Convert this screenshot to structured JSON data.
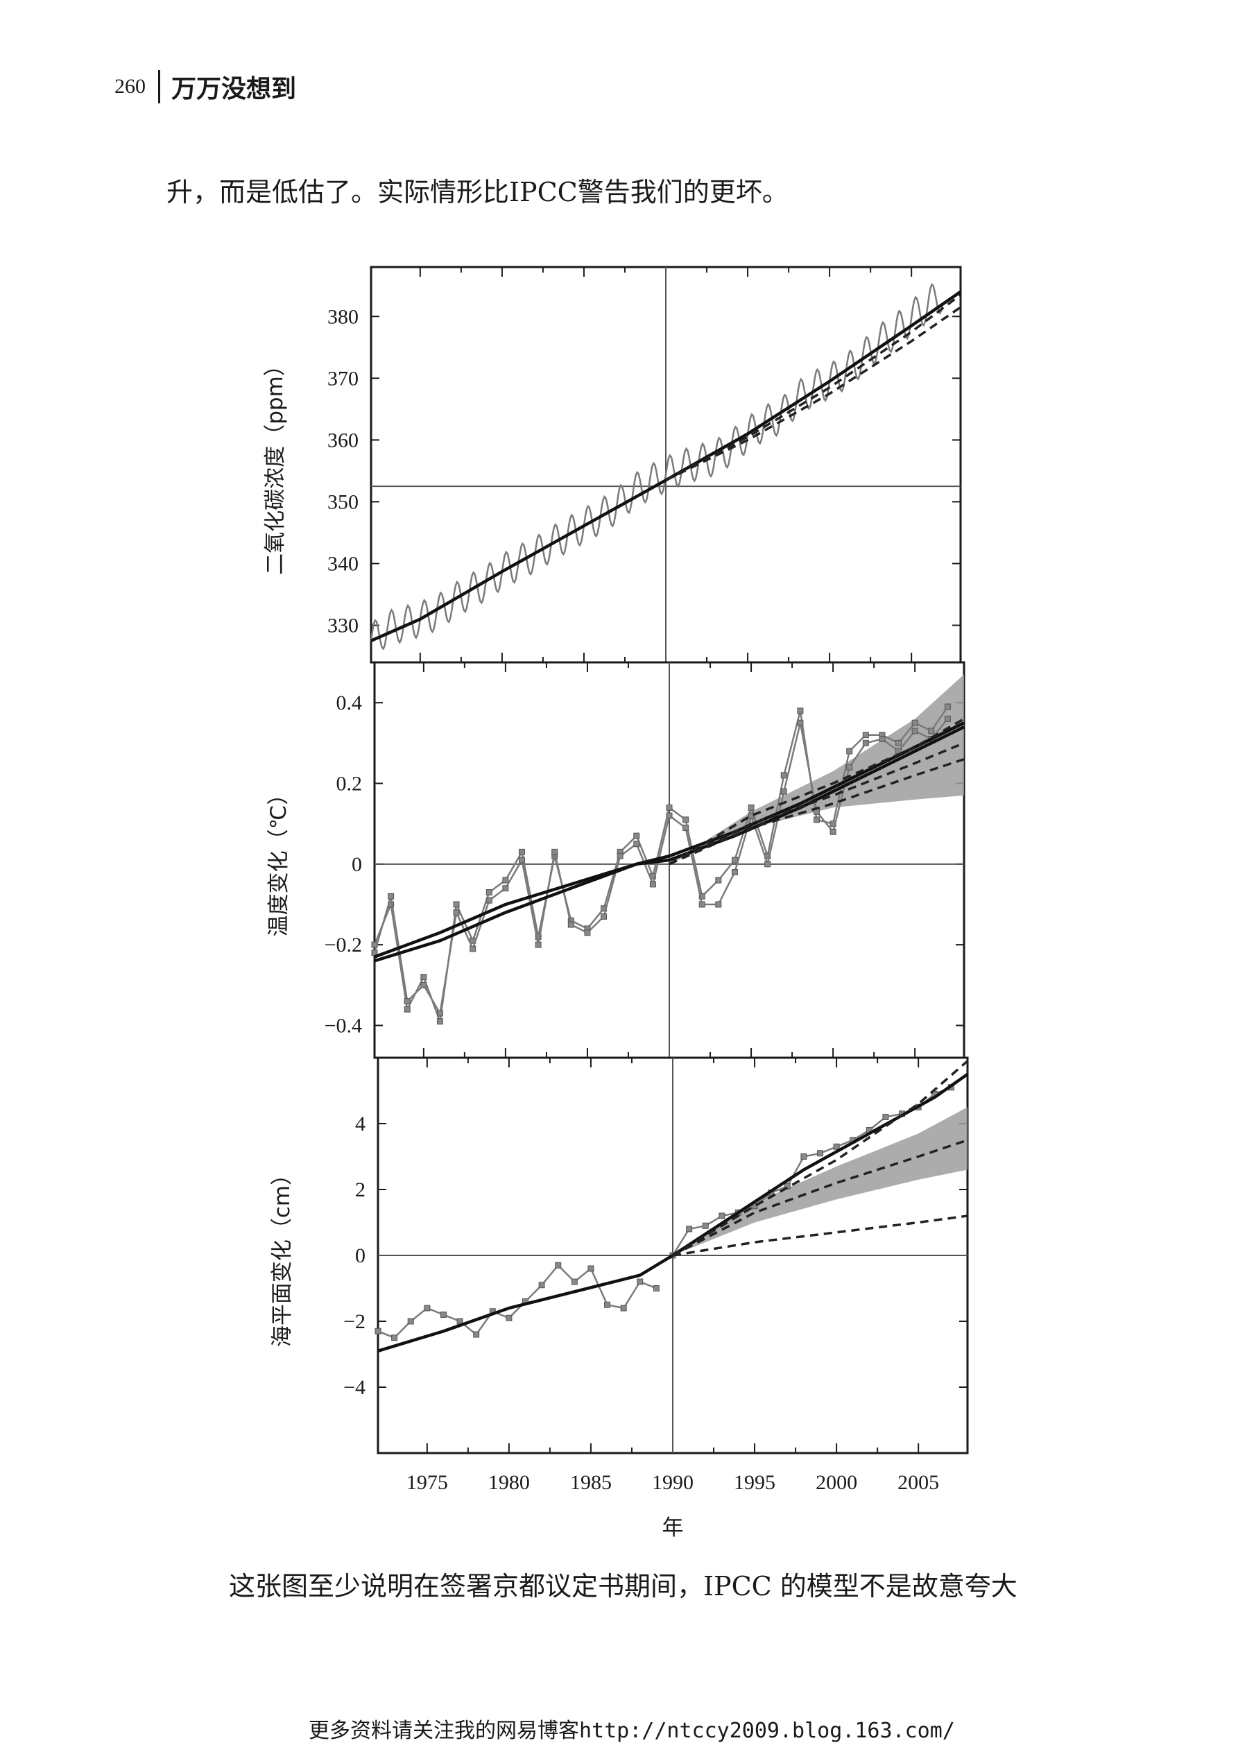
{
  "header": {
    "page_number": "260",
    "book_title": "万万没想到"
  },
  "paragraph_top": "升，而是低估了。实际情形比IPCC警告我们的更坏。",
  "paragraph_bottom": "这张图至少说明在签署京都议定书期间，IPCC 的模型不是故意夸大",
  "footer_note": "更多资料请关注我的网易博客http://ntccy2009.blog.163.com/",
  "chart_data": [
    {
      "type": "line",
      "ylabel": "二氧化碳浓度（ppm）",
      "xlim": [
        1972,
        2008
      ],
      "ylim": [
        324,
        388
      ],
      "yticks": [
        330,
        340,
        350,
        360,
        370,
        380
      ],
      "reference_year": 1990,
      "reference_value": 352.5,
      "series": [
        {
          "kind": "observed",
          "x": [
            1972,
            1973,
            1974,
            1975,
            1976,
            1977,
            1978,
            1979,
            1980,
            1981,
            1982,
            1983,
            1984,
            1985,
            1986,
            1987,
            1988,
            1989,
            1990,
            1991,
            1992,
            1993,
            1994,
            1995,
            1996,
            1997,
            1998,
            1999,
            2000,
            2001,
            2002,
            2003,
            2004,
            2005,
            2006,
            2007
          ],
          "values": [
            327.5,
            329.5,
            330.2,
            331,
            332,
            333.8,
            335.4,
            336.8,
            338.7,
            340.1,
            341.4,
            343.1,
            344.7,
            346.1,
            347.6,
            349.3,
            351.6,
            353.1,
            354.4,
            355.6,
            356.4,
            357.1,
            358.8,
            360.9,
            362.7,
            363.8,
            366.6,
            368.3,
            369.5,
            371.1,
            373.2,
            375.8,
            377.5,
            379.8,
            381.9,
            383.8
          ],
          "seasonal_amplitude": 2.8
        },
        {
          "kind": "trend",
          "x": [
            1972,
            1975,
            1980,
            1985,
            1990,
            1995,
            2000,
            2005,
            2008
          ],
          "values": [
            327.5,
            331,
            338.7,
            346.1,
            353.5,
            361,
            369.5,
            378.5,
            384
          ]
        },
        {
          "kind": "projection",
          "x": [
            1990,
            1995,
            2000,
            2005,
            2008
          ],
          "values": [
            353.5,
            360,
            367.5,
            376,
            381.5
          ]
        },
        {
          "kind": "projection",
          "x": [
            1990,
            1995,
            2000,
            2005,
            2008
          ],
          "values": [
            353.5,
            360.5,
            368.5,
            377.5,
            383.5
          ]
        }
      ]
    },
    {
      "type": "line",
      "ylabel": "温度变化（℃）",
      "xlim": [
        1972,
        2008
      ],
      "ylim": [
        -0.48,
        0.5
      ],
      "yticks": [
        -0.4,
        -0.2,
        0,
        0.2,
        0.4
      ],
      "reference_year": 1990,
      "reference_value": 0,
      "series": [
        {
          "kind": "observed",
          "x": [
            1972,
            1973,
            1974,
            1975,
            1976,
            1977,
            1978,
            1979,
            1980,
            1981,
            1982,
            1983,
            1984,
            1985,
            1986,
            1987,
            1988,
            1989,
            1990,
            1991,
            1992,
            1993,
            1994,
            1995,
            1996,
            1997,
            1998,
            1999,
            2000,
            2001,
            2002,
            2003,
            2004,
            2005,
            2006,
            2007
          ],
          "values": [
            -0.2,
            -0.1,
            -0.36,
            -0.28,
            -0.39,
            -0.1,
            -0.19,
            -0.07,
            -0.04,
            0.03,
            -0.18,
            0.02,
            -0.14,
            -0.16,
            -0.11,
            0.03,
            0.07,
            -0.03,
            0.14,
            0.11,
            -0.08,
            -0.04,
            0.01,
            0.14,
            0.02,
            0.22,
            0.38,
            0.11,
            0.1,
            0.28,
            0.32,
            0.32,
            0.3,
            0.35,
            0.33,
            0.39
          ]
        },
        {
          "kind": "observed",
          "x": [
            1972,
            1973,
            1974,
            1975,
            1976,
            1977,
            1978,
            1979,
            1980,
            1981,
            1982,
            1983,
            1984,
            1985,
            1986,
            1987,
            1988,
            1989,
            1990,
            1991,
            1992,
            1993,
            1994,
            1995,
            1996,
            1997,
            1998,
            1999,
            2000,
            2001,
            2002,
            2003,
            2004,
            2005,
            2006,
            2007
          ],
          "values": [
            -0.22,
            -0.08,
            -0.34,
            -0.3,
            -0.37,
            -0.12,
            -0.21,
            -0.09,
            -0.06,
            0.01,
            -0.2,
            0.03,
            -0.15,
            -0.17,
            -0.13,
            0.02,
            0.05,
            -0.05,
            0.12,
            0.09,
            -0.1,
            -0.1,
            -0.02,
            0.12,
            0.0,
            0.18,
            0.35,
            0.13,
            0.08,
            0.24,
            0.3,
            0.31,
            0.28,
            0.33,
            0.31,
            0.36
          ]
        },
        {
          "kind": "trend",
          "x": [
            1972,
            1976,
            1980,
            1984,
            1988,
            1990,
            1994,
            1998,
            2002,
            2006,
            2008
          ],
          "values": [
            -0.24,
            -0.19,
            -0.12,
            -0.06,
            0.0,
            0.01,
            0.07,
            0.14,
            0.22,
            0.3,
            0.34
          ]
        },
        {
          "kind": "trend",
          "x": [
            1972,
            1976,
            1980,
            1984,
            1988,
            1990,
            1994,
            1998,
            2002,
            2006,
            2008
          ],
          "values": [
            -0.23,
            -0.17,
            -0.1,
            -0.05,
            0.0,
            0.02,
            0.08,
            0.15,
            0.23,
            0.31,
            0.35
          ]
        },
        {
          "kind": "band",
          "x": [
            1990,
            1995,
            2000,
            2005,
            2008
          ],
          "lower": [
            0.0,
            0.09,
            0.14,
            0.16,
            0.17
          ],
          "upper": [
            0.0,
            0.13,
            0.23,
            0.36,
            0.47
          ]
        },
        {
          "kind": "projection",
          "x": [
            1990,
            1995,
            2000,
            2005,
            2008
          ],
          "values": [
            0.0,
            0.12,
            0.2,
            0.29,
            0.36
          ]
        },
        {
          "kind": "projection",
          "x": [
            1990,
            1995,
            2000,
            2005,
            2008
          ],
          "values": [
            0.0,
            0.1,
            0.17,
            0.25,
            0.3
          ]
        },
        {
          "kind": "projection",
          "x": [
            1990,
            1995,
            2000,
            2005,
            2008
          ],
          "values": [
            0.0,
            0.09,
            0.15,
            0.22,
            0.26
          ]
        }
      ]
    },
    {
      "type": "line",
      "ylabel": "海平面变化（cm）",
      "xlabel": "年",
      "xlim": [
        1972,
        2008
      ],
      "ylim": [
        -6,
        6
      ],
      "yticks": [
        -4,
        -2,
        0,
        2,
        4
      ],
      "xticks": [
        1975,
        1980,
        1985,
        1990,
        1995,
        2000,
        2005
      ],
      "reference_year": 1990,
      "reference_value": 0,
      "series": [
        {
          "kind": "observed",
          "x": [
            1972,
            1973,
            1974,
            1975,
            1976,
            1977,
            1978,
            1979,
            1980,
            1981,
            1982,
            1983,
            1984,
            1985,
            1986,
            1987,
            1988,
            1989
          ],
          "values": [
            -2.3,
            -2.5,
            -2.0,
            -1.6,
            -1.8,
            -2.0,
            -2.4,
            -1.7,
            -1.9,
            -1.4,
            -0.9,
            -0.3,
            -0.8,
            -0.4,
            -1.5,
            -1.6,
            -0.8,
            -1.0
          ]
        },
        {
          "kind": "observed",
          "x": [
            1990,
            1991,
            1992,
            1993,
            1994,
            1995,
            1996,
            1997,
            1998,
            1999,
            2000,
            2001,
            2002,
            2003,
            2004,
            2005,
            2006,
            2007
          ],
          "values": [
            0.0,
            0.8,
            0.9,
            1.2,
            1.3,
            1.5,
            1.9,
            2.1,
            3.0,
            3.1,
            3.3,
            3.5,
            3.8,
            4.2,
            4.3,
            4.5,
            4.9,
            5.1
          ]
        },
        {
          "kind": "trend",
          "x": [
            1972,
            1976,
            1980,
            1984,
            1988,
            1990,
            1994,
            1998,
            2002,
            2006,
            2008
          ],
          "values": [
            -2.9,
            -2.3,
            -1.6,
            -1.1,
            -0.6,
            0.0,
            1.3,
            2.6,
            3.7,
            4.8,
            5.5
          ]
        },
        {
          "kind": "band",
          "x": [
            1990,
            1995,
            2000,
            2005,
            2008
          ],
          "lower": [
            0.0,
            1.0,
            1.7,
            2.3,
            2.6
          ],
          "upper": [
            0.0,
            1.6,
            2.7,
            3.7,
            4.5
          ]
        },
        {
          "kind": "projection",
          "x": [
            1990,
            1995,
            2000,
            2005,
            2008
          ],
          "values": [
            0.0,
            1.3,
            2.2,
            3.0,
            3.5
          ]
        },
        {
          "kind": "projection",
          "x": [
            1990,
            1995,
            2000,
            2005,
            2008
          ],
          "values": [
            0.0,
            0.4,
            0.7,
            1.0,
            1.2
          ]
        },
        {
          "kind": "projection",
          "x": [
            1990,
            1995,
            2000,
            2005,
            2008
          ],
          "values": [
            0.0,
            1.5,
            2.9,
            4.6,
            5.9
          ]
        }
      ]
    }
  ]
}
